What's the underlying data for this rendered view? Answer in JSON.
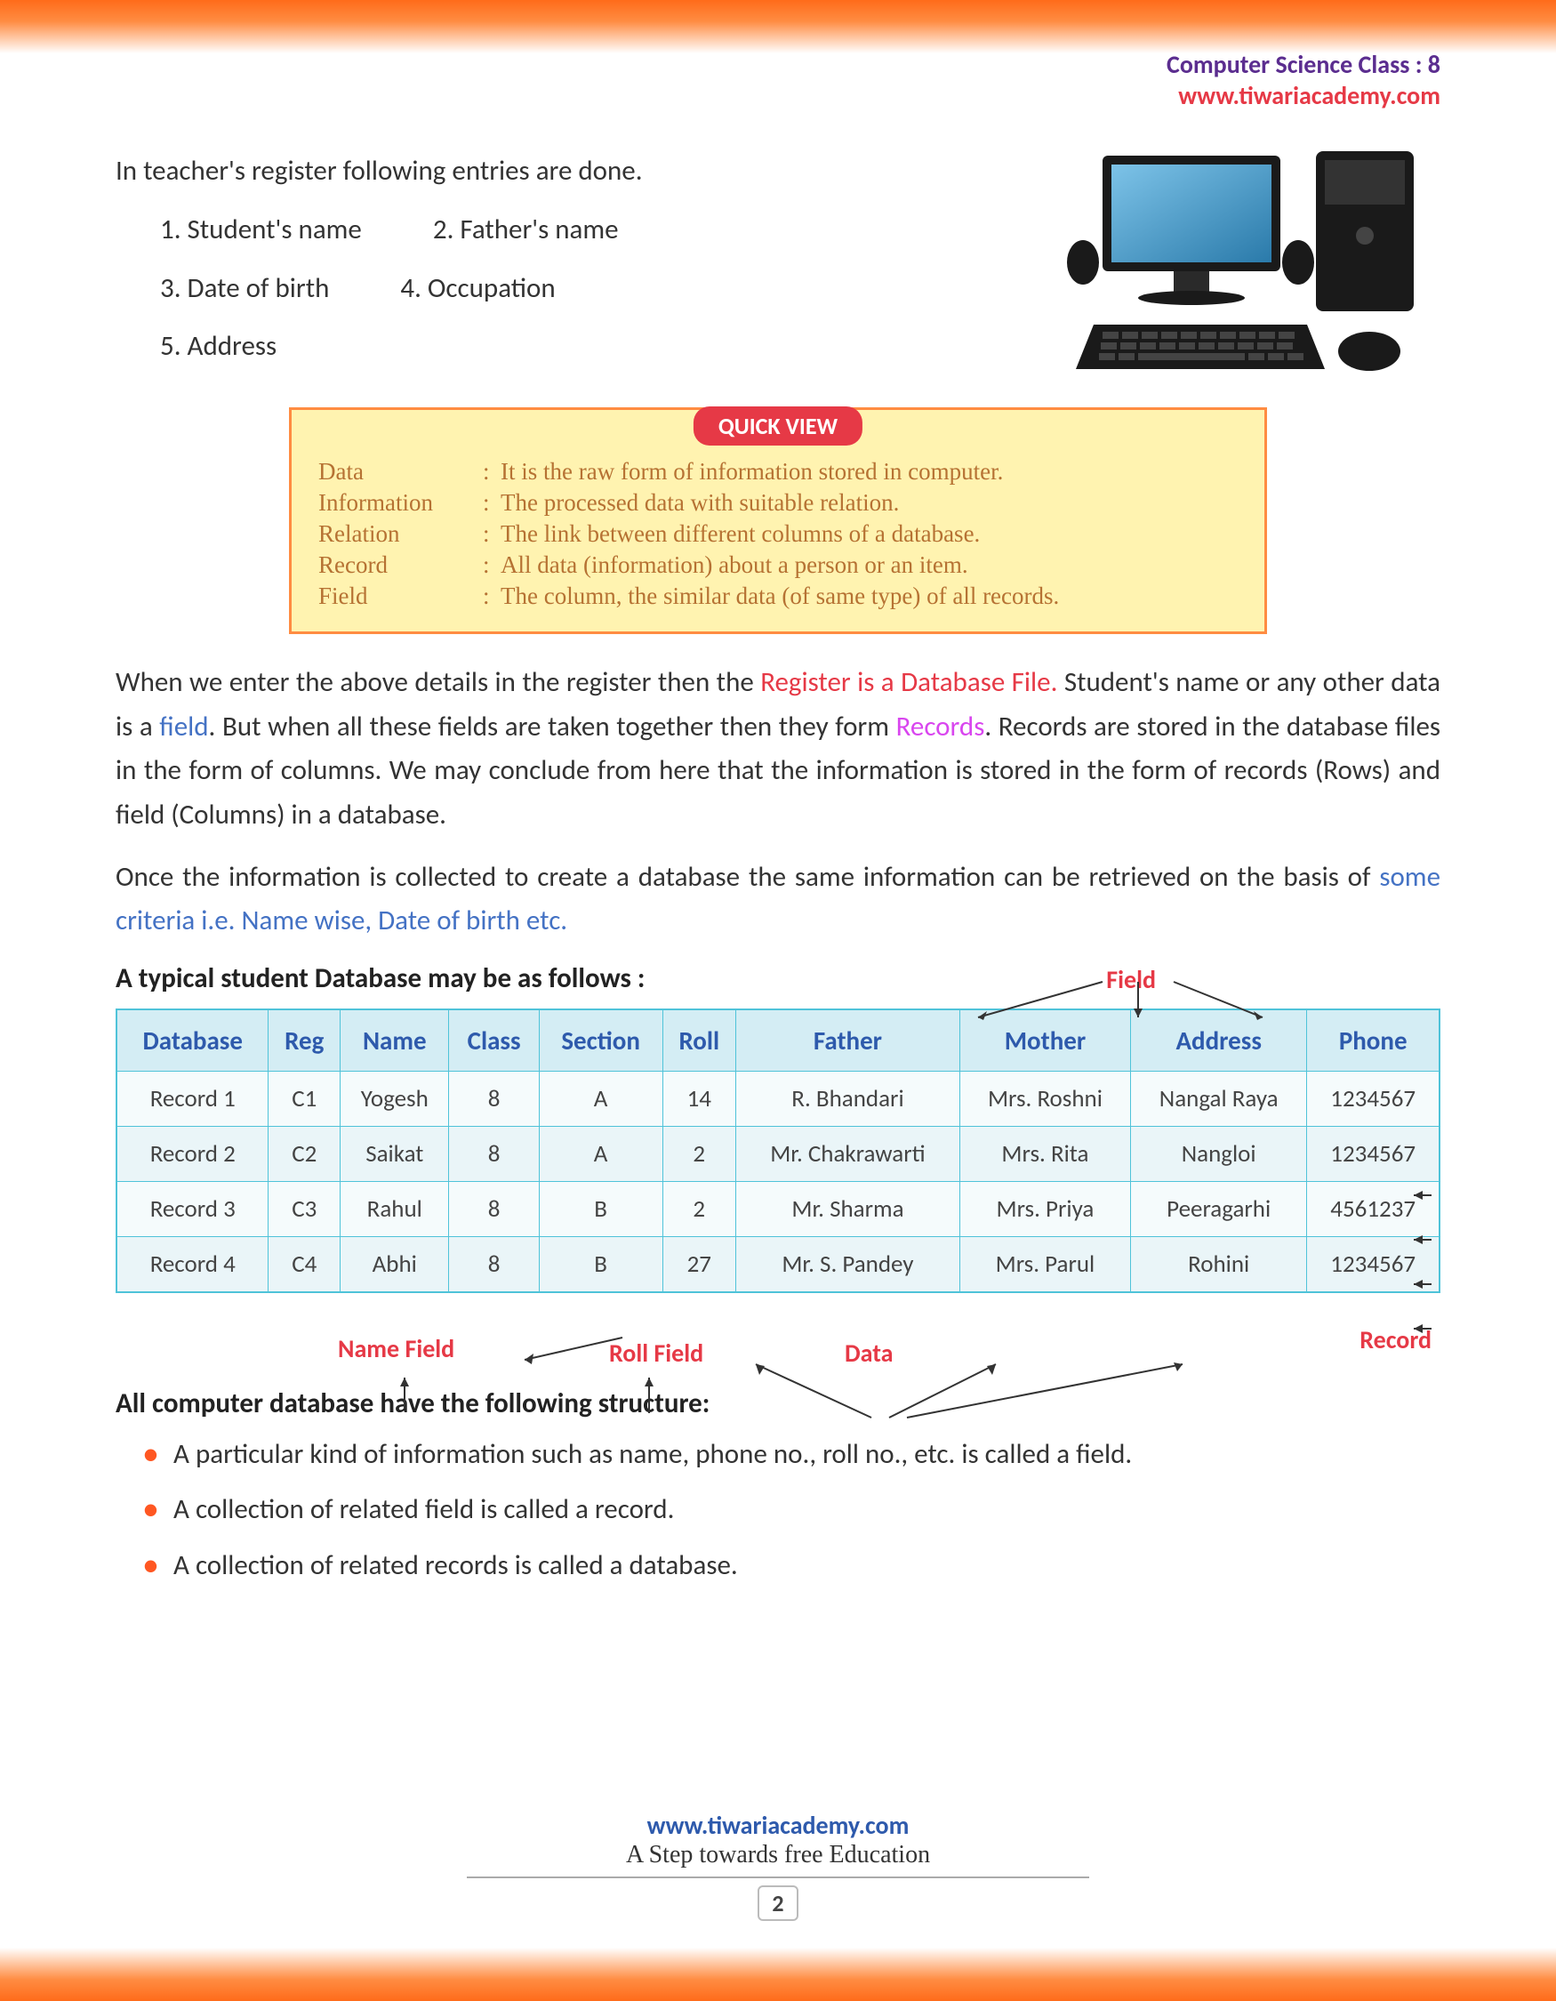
{
  "header": {
    "class_label": "Computer Science Class : 8",
    "site": "www.tiwariacademy.com"
  },
  "intro": {
    "text": "In teacher's register following entries are done.",
    "entries": [
      "1. Student's name",
      "2. Father's name",
      "3. Date of birth",
      "4. Occupation",
      "5. Address"
    ]
  },
  "quickview": {
    "title": "QUICK VIEW",
    "defs": [
      {
        "term": "Data",
        "def": "It is the raw form of information stored in computer."
      },
      {
        "term": "Information",
        "def": "The processed data with suitable relation."
      },
      {
        "term": "Relation",
        "def": "The link between different columns of a database."
      },
      {
        "term": "Record",
        "def": "All data (information) about a person or an item."
      },
      {
        "term": "Field",
        "def": "The column, the similar data (of same type) of all records."
      }
    ]
  },
  "para1": {
    "p1": "When we enter the above details in the register then the ",
    "p2": "Register is a Database File.",
    "p3": " Student's name or any other data is a ",
    "p4": "field",
    "p5": ". But when all these fields are taken together then they form ",
    "p6": "Records",
    "p7": ". Records are stored in the database files in the form of columns. We may conclude from here that the information is stored in the form of records (Rows) and field (Columns) in a database."
  },
  "para2": {
    "p1": "Once the information is collected to create a database the same information can be retrieved on the basis of ",
    "p2": "some criteria i.e. Name wise, Date of birth etc."
  },
  "table_heading": "A typical student Database may be as follows :",
  "field_label": "Field",
  "table": {
    "headers": [
      "Database",
      "Reg",
      "Name",
      "Class",
      "Section",
      "Roll",
      "Father",
      "Mother",
      "Address",
      "Phone"
    ],
    "rows": [
      [
        "Record 1",
        "C1",
        "Yogesh",
        "8",
        "A",
        "14",
        "R. Bhandari",
        "Mrs. Roshni",
        "Nangal Raya",
        "1234567"
      ],
      [
        "Record 2",
        "C2",
        "Saikat",
        "8",
        "A",
        "2",
        "Mr. Chakrawarti",
        "Mrs. Rita",
        "Nangloi",
        "1234567"
      ],
      [
        "Record 3",
        "C3",
        "Rahul",
        "8",
        "B",
        "2",
        "Mr. Sharma",
        "Mrs. Priya",
        "Peeragarhi",
        "4561237"
      ],
      [
        "Record 4",
        "C4",
        "Abhi",
        "8",
        "B",
        "27",
        "Mr. S. Pandey",
        "Mrs. Parul",
        "Rohini",
        "1234567"
      ]
    ]
  },
  "labels": {
    "name_field": "Name Field",
    "roll_field": "Roll Field",
    "data": "Data",
    "record": "Record"
  },
  "structure_heading": "All computer database have the following structure:",
  "bullets": [
    "A particular kind of information such as name, phone no., roll no., etc. is called a field.",
    "A collection of related field is called a record.",
    "A collection of related records is called a database."
  ],
  "footer": {
    "site": "www.tiwariacademy.com",
    "slogan": "A Step towards free Education",
    "page": "2"
  },
  "colors": {
    "orange": "#ff6b1a",
    "red": "#e63946",
    "blue": "#4472c4",
    "header_blue": "#2e5aac",
    "magenta": "#d946ef",
    "box_bg": "#fff3b0",
    "box_border": "#ff8c42",
    "table_border": "#4fc3d9",
    "table_header_bg": "#d4edf4"
  }
}
